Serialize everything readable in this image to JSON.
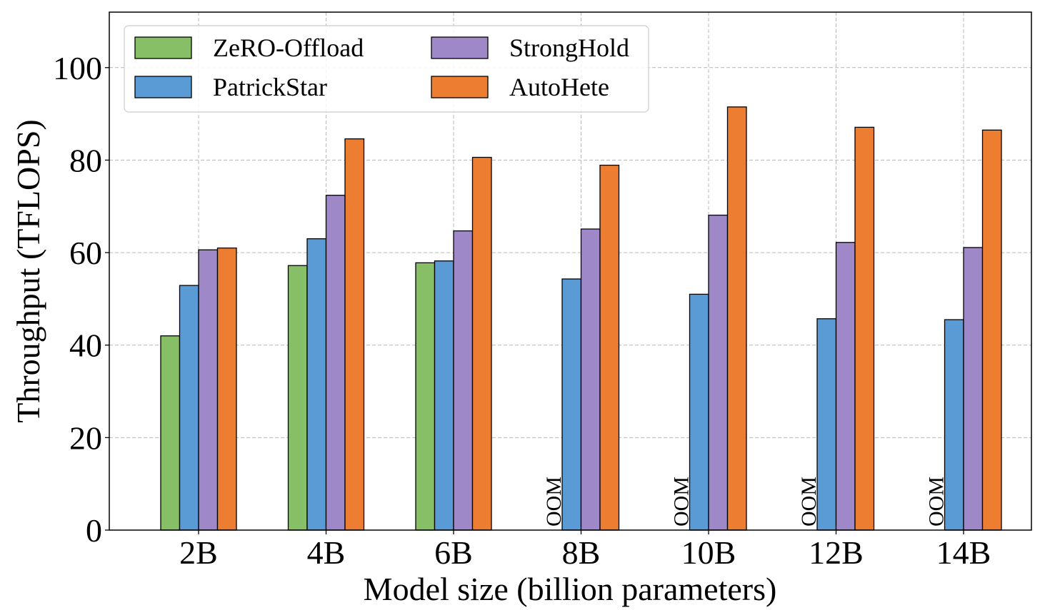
{
  "chart_data": {
    "type": "bar",
    "xlabel": "Model size (billion parameters)",
    "ylabel": "Throughput (TFLOPS)",
    "ylim": [
      0,
      112
    ],
    "yticks": [
      0,
      20,
      40,
      60,
      80,
      100
    ],
    "ytick_labels": [
      "0",
      "20",
      "40",
      "60",
      "80",
      "100"
    ],
    "grid": true,
    "legend_position": "top-left",
    "categories": [
      "2B",
      "4B",
      "6B",
      "8B",
      "10B",
      "12B",
      "14B"
    ],
    "series": [
      {
        "name": "ZeRO-Offload",
        "color": "#86bf66",
        "values": [
          42.0,
          57.2,
          57.8,
          null,
          null,
          null,
          null
        ]
      },
      {
        "name": "PatrickStar",
        "color": "#5b9bd5",
        "values": [
          52.9,
          63.0,
          58.2,
          54.3,
          51.0,
          45.7,
          45.5
        ]
      },
      {
        "name": "StrongHold",
        "color": "#9e88c8",
        "values": [
          60.6,
          72.4,
          64.7,
          65.1,
          68.1,
          62.2,
          61.1
        ]
      },
      {
        "name": "AutoHete",
        "color": "#ed7d31",
        "values": [
          61.0,
          84.6,
          80.6,
          78.9,
          91.5,
          87.1,
          86.5
        ]
      }
    ],
    "annotations": [
      {
        "category": "8B",
        "series": "ZeRO-Offload",
        "text": "OOM"
      },
      {
        "category": "10B",
        "series": "ZeRO-Offload",
        "text": "OOM"
      },
      {
        "category": "12B",
        "series": "ZeRO-Offload",
        "text": "OOM"
      },
      {
        "category": "14B",
        "series": "ZeRO-Offload",
        "text": "OOM"
      }
    ]
  }
}
